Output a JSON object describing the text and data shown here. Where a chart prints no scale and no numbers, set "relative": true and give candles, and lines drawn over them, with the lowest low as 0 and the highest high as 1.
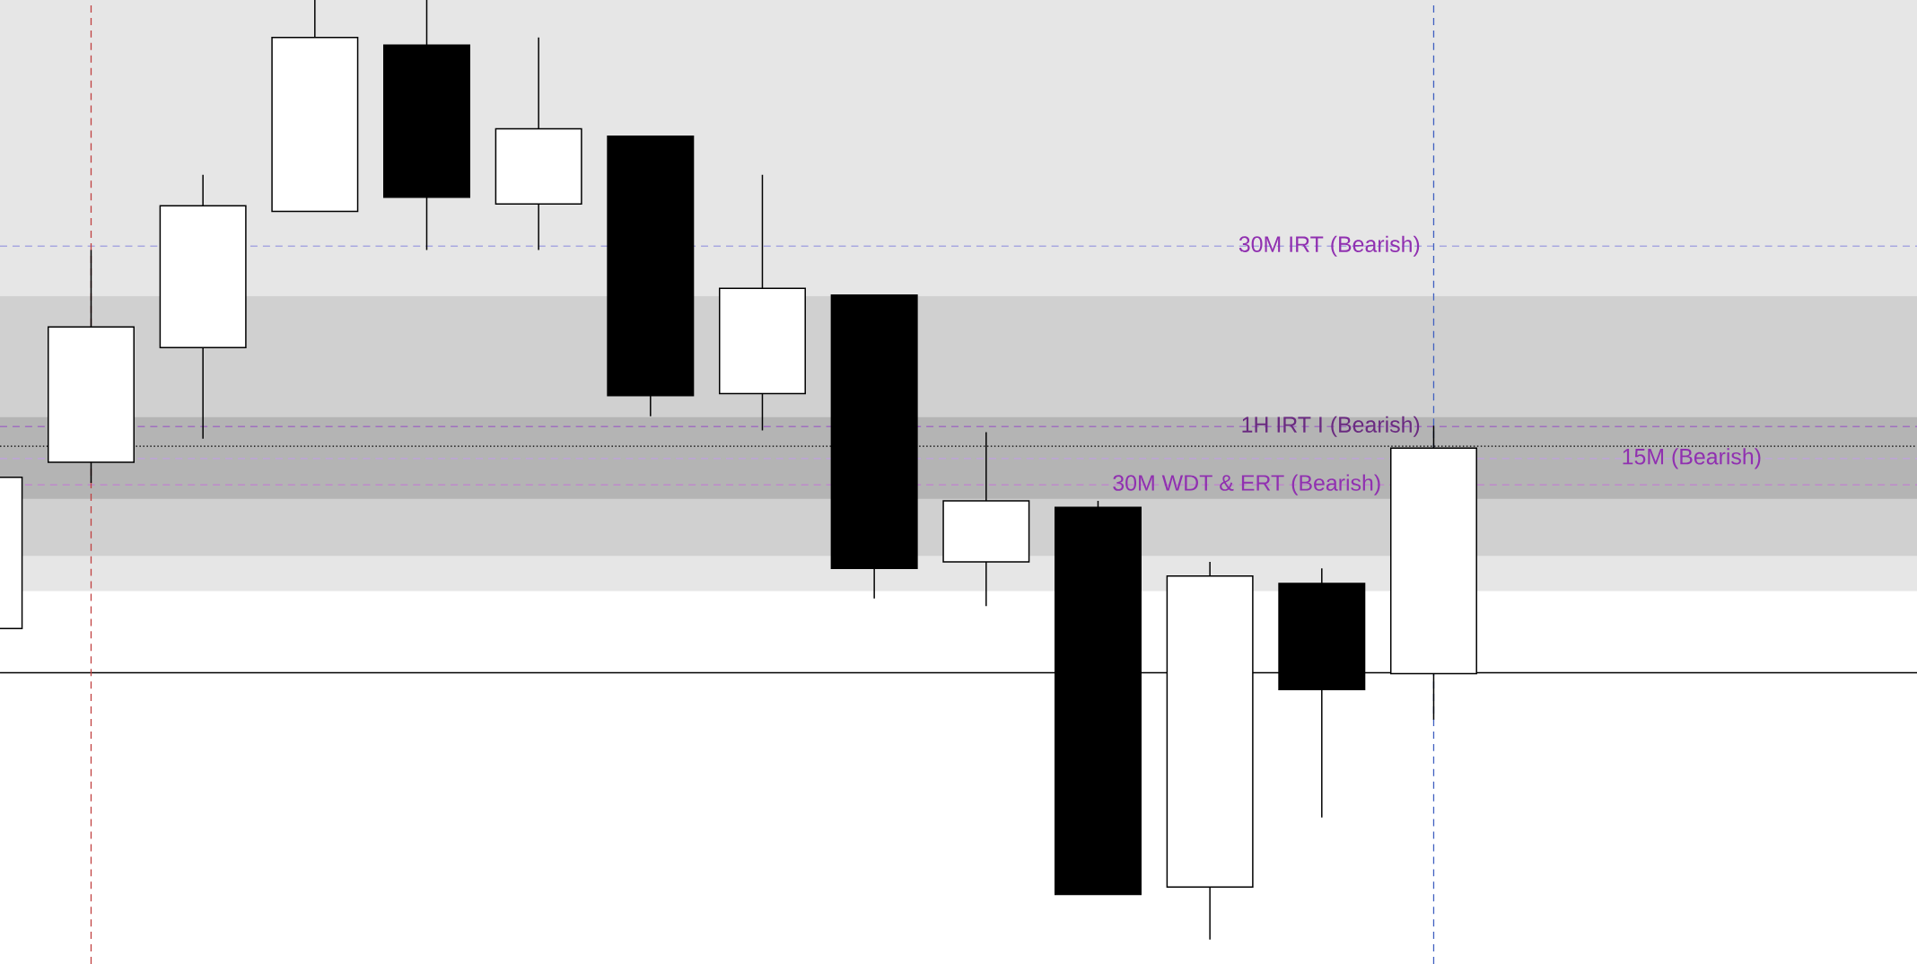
{
  "chart_data": {
    "type": "candlestick",
    "relative": true,
    "categories": [
      null,
      null,
      null,
      null,
      null,
      null,
      null,
      null,
      null,
      null,
      null,
      null,
      null,
      null
    ],
    "ohlc": [
      [
        0.331,
        0.492,
        0.331,
        0.492
      ],
      [
        0.508,
        0.734,
        0.486,
        0.652
      ],
      [
        0.63,
        0.814,
        0.533,
        0.781
      ],
      [
        0.775,
        1.0,
        0.775,
        0.96
      ],
      [
        0.952,
        1.0,
        0.734,
        0.79
      ],
      [
        0.783,
        0.96,
        0.734,
        0.863
      ],
      [
        0.855,
        0.855,
        0.557,
        0.579
      ],
      [
        0.581,
        0.814,
        0.542,
        0.693
      ],
      [
        0.686,
        0.686,
        0.363,
        0.395
      ],
      [
        0.402,
        0.54,
        0.355,
        0.467
      ],
      [
        0.46,
        0.467,
        0.048,
        0.048
      ],
      [
        0.056,
        0.402,
        0.0,
        0.387
      ],
      [
        0.379,
        0.395,
        0.13,
        0.266
      ],
      [
        0.283,
        0.547,
        0.234,
        0.523
      ]
    ],
    "bands": [
      {
        "axis": "y",
        "from": 0.685,
        "to": 1.0,
        "color": "#e6e6e6"
      },
      {
        "axis": "y",
        "from": 0.408,
        "to": 0.685,
        "color": "#d0d0d0"
      },
      {
        "axis": "y",
        "from": 0.371,
        "to": 0.408,
        "color": "#e6e6e6"
      },
      {
        "axis": "y",
        "from": 0.469,
        "to": 0.556,
        "color": "#b4b4b4"
      }
    ],
    "ref_lines": [
      {
        "axis": "y",
        "value": 0.738,
        "label": "30M IRT (Bearish)",
        "color": "#a8a8e0",
        "line_style": "dashed"
      },
      {
        "axis": "y",
        "value": 0.546,
        "label": "1H IRT I (Bearish)",
        "color": "#a070c0",
        "line_style": "dashed"
      },
      {
        "axis": "y",
        "value": 0.484,
        "label": "30M WDT & ERT (Bearish)",
        "color": "#c080d0",
        "line_style": "dashed"
      },
      {
        "axis": "y",
        "value": 0.512,
        "label": "15M (Bearish)",
        "color": "#c0a0e0",
        "line_style": "dashed"
      },
      {
        "axis": "y",
        "value": 0.525,
        "color": "#000000",
        "line_style": "dotted"
      },
      {
        "axis": "y",
        "value": 0.284,
        "color": "#000000",
        "line_style": "solid"
      }
    ]
  }
}
